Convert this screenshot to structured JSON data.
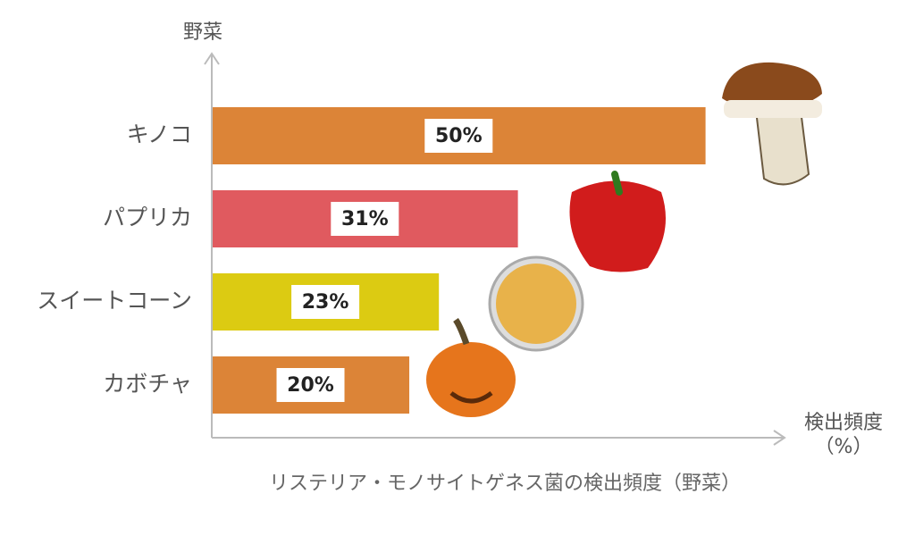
{
  "chart_data": {
    "type": "bar",
    "orientation": "horizontal",
    "title": "リステリア・モノサイトゲネス菌の検出頻度（野菜）",
    "x_label": "検出頻度（%）",
    "y_label": "野菜",
    "categories": [
      "キノコ",
      "パプリカ",
      "スイートコーン",
      "カボチャ"
    ],
    "values": [
      50,
      31,
      23,
      20
    ],
    "value_labels": [
      "50%",
      "31%",
      "23%",
      "20%"
    ],
    "colors": [
      "#dc8437",
      "#e05a5f",
      "#dccb12",
      "#dc8437"
    ],
    "xlim": [
      0,
      58
    ]
  }
}
